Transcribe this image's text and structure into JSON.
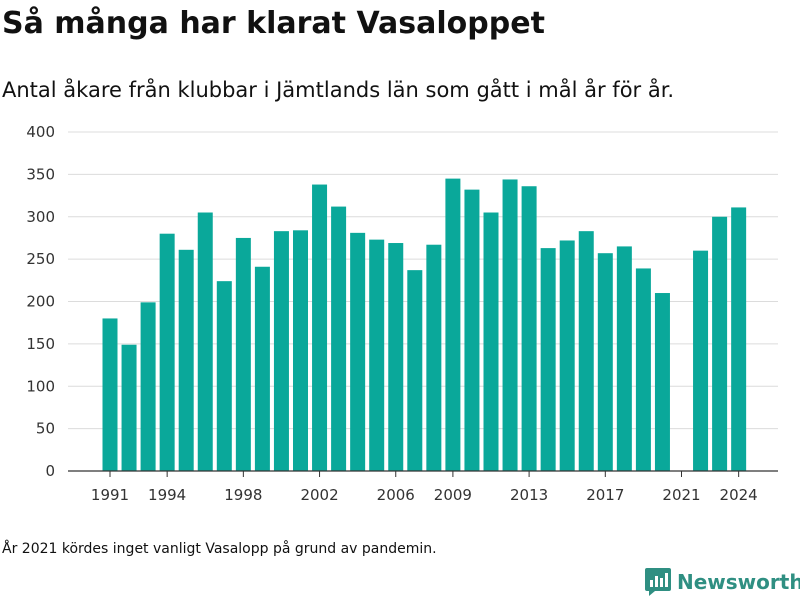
{
  "brand": {
    "name": "Newsworthy",
    "color": "#2f8f82"
  },
  "footnote": "År 2021 kördes inget vanligt Vasalopp på grund av pandemin.",
  "chart_data": {
    "type": "bar",
    "title": "Så många har klarat Vasaloppet",
    "subtitle": "Antal åkare från klubbar i Jämtlands län som gått i mål år för år.",
    "xlabel": "",
    "ylabel": "",
    "ylim": [
      0,
      400
    ],
    "yticks": [
      0,
      50,
      100,
      150,
      200,
      250,
      300,
      350,
      400
    ],
    "xticks": [
      1991,
      1994,
      1998,
      2002,
      2006,
      2009,
      2013,
      2017,
      2021,
      2024
    ],
    "grid": true,
    "bar_color": "#0aa89a",
    "categories": [
      1991,
      1992,
      1993,
      1994,
      1995,
      1996,
      1997,
      1998,
      1999,
      2000,
      2001,
      2002,
      2003,
      2004,
      2005,
      2006,
      2007,
      2008,
      2009,
      2010,
      2011,
      2012,
      2013,
      2014,
      2015,
      2016,
      2017,
      2018,
      2019,
      2020,
      2021,
      2022,
      2023,
      2024
    ],
    "values": [
      180,
      149,
      199,
      280,
      261,
      305,
      224,
      275,
      241,
      283,
      284,
      338,
      312,
      281,
      273,
      269,
      237,
      267,
      345,
      332,
      305,
      344,
      336,
      263,
      272,
      283,
      257,
      265,
      239,
      210,
      null,
      260,
      300,
      311
    ]
  }
}
